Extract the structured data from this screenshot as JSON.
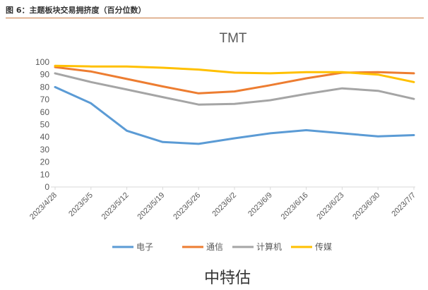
{
  "figure": {
    "caption": "图 6：主题板块交易拥挤度（百分位数）",
    "watermark": "中特估"
  },
  "chart_data": {
    "type": "line",
    "title": "TMT",
    "xlabel": "",
    "ylabel": "",
    "ylim": [
      0,
      100
    ],
    "yticks": [
      0,
      10,
      20,
      30,
      40,
      50,
      60,
      70,
      80,
      90,
      100
    ],
    "grid": false,
    "legend_position": "bottom",
    "categories": [
      "2023/4/28",
      "2023/5/5",
      "2023/5/12",
      "2023/5/19",
      "2023/5/26",
      "2023/6/2",
      "2023/6/9",
      "2023/6/16",
      "2023/6/23",
      "2023/6/30",
      "2023/7/7"
    ],
    "series": [
      {
        "name": "电子",
        "color": "#5b9bd5",
        "values": [
          80,
          67,
          45,
          36,
          34.5,
          39,
          43,
          45.5,
          43,
          40.5,
          41.5
        ]
      },
      {
        "name": "通信",
        "color": "#ed7d31",
        "values": [
          96,
          92.5,
          86.5,
          80.5,
          75,
          76.5,
          81.5,
          87,
          91.5,
          92,
          91
        ]
      },
      {
        "name": "计算机",
        "color": "#a5a5a5",
        "values": [
          91,
          84,
          78,
          72,
          66,
          66.5,
          69.5,
          74.5,
          79,
          77,
          70.5
        ]
      },
      {
        "name": "传媒",
        "color": "#ffc000",
        "values": [
          97,
          96.5,
          96.5,
          95.5,
          94,
          91.5,
          91,
          92,
          92,
          90,
          84
        ]
      }
    ]
  }
}
